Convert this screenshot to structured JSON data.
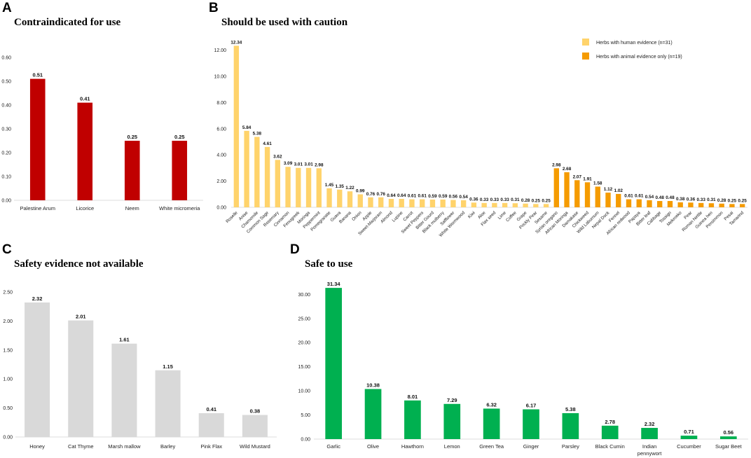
{
  "colors": {
    "red": "#C00000",
    "human": "#FFD36B",
    "animal": "#F59B00",
    "grey": "#D9D9D9",
    "green": "#00B050"
  },
  "chart_data": [
    {
      "id": "A",
      "letter": "A",
      "type": "bar",
      "title": "Contraindicated for use",
      "categories": [
        "Palestine Arum",
        "Licorice",
        "Neem",
        "White micromeria"
      ],
      "values": [
        0.51,
        0.41,
        0.25,
        0.25
      ],
      "value_labels": [
        "0.51",
        "0.41",
        "0.25",
        "0.25"
      ],
      "ylim": [
        0,
        0.6
      ],
      "yticks": [
        "0.00",
        "0.10",
        "0.20",
        "0.30",
        "0.40",
        "0.50",
        "0.60"
      ],
      "color": "#C00000"
    },
    {
      "id": "B",
      "letter": "B",
      "type": "bar",
      "title": "Should be used with caution",
      "categories": [
        "Roselle",
        "Anise",
        "Chamomile",
        "Common Sage",
        "Rosemary",
        "Cinnamon",
        "Fenugreek",
        "Moringa",
        "Peppermint",
        "Pomegranate",
        "Guava",
        "Banana",
        "Onion",
        "Apple",
        "Sweet-Marjoram",
        "Almond",
        "Lupine",
        "Carrot",
        "Sweet Peppers",
        "Bitter Gourd",
        "Black mulberry",
        "Safflower",
        "White Wormwood",
        "Kiwi",
        "Aloe",
        "Flax seed",
        "Lime",
        "Coffee",
        "Grape",
        "Prickly Pear",
        "Sesame",
        "Syrian oregano",
        "African Moringa",
        "Damakase",
        "Chickweed",
        "Wild Laburnum",
        "Nepal Dock",
        "Fennel",
        "African redwood",
        "Papaya",
        "Bitter leaf",
        "Cabbage",
        "Tossign",
        "Mekmeko",
        "Pear",
        "Roman Nettle",
        "Guinea hen",
        "Persimmon",
        "Pesai",
        "Tamarind"
      ],
      "values": [
        12.34,
        5.84,
        5.38,
        4.61,
        3.62,
        3.09,
        3.01,
        3.01,
        2.98,
        1.45,
        1.35,
        1.22,
        0.99,
        0.76,
        0.76,
        0.64,
        0.64,
        0.61,
        0.61,
        0.59,
        0.59,
        0.56,
        0.54,
        0.36,
        0.33,
        0.33,
        0.33,
        0.31,
        0.28,
        0.25,
        0.25,
        2.98,
        2.68,
        2.07,
        1.91,
        1.58,
        1.12,
        1.02,
        0.61,
        0.61,
        0.54,
        0.48,
        0.48,
        0.38,
        0.36,
        0.33,
        0.31,
        0.28,
        0.25,
        0.25
      ],
      "value_labels": [
        "12.34",
        "5.84",
        "5.38",
        "4.61",
        "3.62",
        "3.09",
        "3.01",
        "3.01",
        "2.98",
        "1.45",
        "1.35",
        "1.22",
        "0.99",
        "0.76",
        "0.76",
        "0.64",
        "0.64",
        "0.61",
        "0.61",
        "0.59",
        "0.59",
        "0.56",
        "0.54",
        "0.36",
        "0.33",
        "0.33",
        "0.33",
        "0.31",
        "0.28",
        "0.25",
        "0.25",
        "2.98",
        "2.68",
        "2.07",
        "1.91",
        "1.58",
        "1.12",
        "1.02",
        "0.61",
        "0.61",
        "0.54",
        "0.48",
        "0.48",
        "0.38",
        "0.36",
        "0.33",
        "0.31",
        "0.28",
        "0.25",
        "0.25"
      ],
      "series_index": [
        0,
        0,
        0,
        0,
        0,
        0,
        0,
        0,
        0,
        0,
        0,
        0,
        0,
        0,
        0,
        0,
        0,
        0,
        0,
        0,
        0,
        0,
        0,
        0,
        0,
        0,
        0,
        0,
        0,
        0,
        0,
        1,
        1,
        1,
        1,
        1,
        1,
        1,
        1,
        1,
        1,
        1,
        1,
        1,
        1,
        1,
        1,
        1,
        1,
        1
      ],
      "series": [
        {
          "name": "Herbs with human evidence (n=31)",
          "color": "#FFD36B"
        },
        {
          "name": "Herbs with animal evidence only (n=19)",
          "color": "#F59B00"
        }
      ],
      "ylim": [
        0,
        13
      ],
      "yticks": [
        "0.00",
        "2.00",
        "4.00",
        "6.00",
        "8.00",
        "10.00",
        "12.00"
      ],
      "legend": "top-right"
    },
    {
      "id": "C",
      "letter": "C",
      "type": "bar",
      "title": "Safety evidence not available",
      "categories": [
        "Honey",
        "Cat Thyme",
        "Marsh mallow",
        "Barley",
        "Pink Flax",
        "Wild Mustard"
      ],
      "values": [
        2.32,
        2.01,
        1.61,
        1.15,
        0.41,
        0.38
      ],
      "value_labels": [
        "2.32",
        "2.01",
        "1.61",
        "1.15",
        "0.41",
        "0.38"
      ],
      "ylim": [
        0,
        2.5
      ],
      "yticks": [
        "0.00",
        "0.50",
        "1.00",
        "1.50",
        "2.00",
        "2.50"
      ],
      "color": "#D9D9D9"
    },
    {
      "id": "D",
      "letter": "D",
      "type": "bar",
      "title": "Safe to use",
      "categories": [
        "Garlic",
        "Olive",
        "Hawthorn",
        "Lemon",
        "Green Tea",
        "Ginger",
        "Parsley",
        "Black Cumin",
        "Indian pennywort",
        "Cucumber",
        "Sugar Beet"
      ],
      "values": [
        31.34,
        10.38,
        8.01,
        7.29,
        6.32,
        6.17,
        5.38,
        2.78,
        2.32,
        0.71,
        0.56
      ],
      "value_labels": [
        "31.34",
        "10.38",
        "8.01",
        "7.29",
        "6.32",
        "6.17",
        "5.38",
        "2.78",
        "2.32",
        "0.71",
        "0.56"
      ],
      "ylim": [
        0,
        31.5
      ],
      "yticks": [
        "0.00",
        "5.00",
        "10.00",
        "15.00",
        "20.00",
        "25.00",
        "30.00"
      ],
      "color": "#00B050"
    }
  ]
}
